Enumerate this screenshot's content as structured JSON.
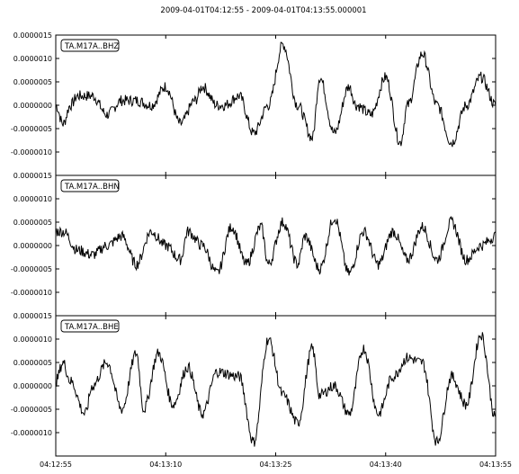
{
  "chart_data": {
    "type": "line",
    "title": "2009-04-01T04:12:55  -  2009-04-01T04:13:55.000001",
    "line_color": "#000000",
    "grid": false,
    "x_ticks": [
      "04:12:55",
      "04:13:10",
      "04:13:25",
      "04:13:40",
      "04:13:55"
    ],
    "xlim": [
      "04:12:55",
      "04:13:55"
    ],
    "y_tick_values": [
      1.5e-06,
      1e-06,
      5e-07,
      0.0,
      -5e-07,
      -1e-06
    ],
    "y_ticks": [
      "0.0000015",
      "0.0000010",
      "0.0000005",
      "0.0000000",
      "-0.0000005",
      "-0.0000010"
    ],
    "ylim": [
      -1.5e-06,
      1.5e-06
    ],
    "series": [
      {
        "name": "TA.M17A..BHZ",
        "x": [
          "04:12:55",
          "04:12:56",
          "04:12:57",
          "04:12:58",
          "04:13:00",
          "04:13:02",
          "04:13:04",
          "04:13:06",
          "04:13:08",
          "04:13:10",
          "04:13:12",
          "04:13:14",
          "04:13:15",
          "04:13:17",
          "04:13:18",
          "04:13:20",
          "04:13:22",
          "04:13:24",
          "04:13:26",
          "04:13:28",
          "04:13:30",
          "04:13:31",
          "04:13:33",
          "04:13:35",
          "04:13:36",
          "04:13:38",
          "04:13:40",
          "04:13:42",
          "04:13:43",
          "04:13:45",
          "04:13:47",
          "04:13:49",
          "04:13:51",
          "04:13:53",
          "04:13:55"
        ],
        "y": [
          0.0,
          -4e-07,
          0.0,
          2e-07,
          2e-07,
          -2e-07,
          1e-07,
          1e-07,
          0.0,
          4e-07,
          -4e-07,
          1e-07,
          4e-07,
          0.0,
          0.0,
          2e-07,
          -6e-07,
          0.0,
          1.3e-06,
          0.0,
          -7e-07,
          6e-07,
          -6e-07,
          4e-07,
          0.0,
          -2e-07,
          6e-07,
          -8e-07,
          0.0,
          1.1e-06,
          0.0,
          -8e-07,
          0.0,
          6e-07,
          0.0
        ],
        "noise": 1.2e-07
      },
      {
        "name": "TA.M17A..BHN",
        "x": [
          "04:12:55",
          "04:12:56",
          "04:12:58",
          "04:13:00",
          "04:13:02",
          "04:13:04",
          "04:13:06",
          "04:13:08",
          "04:13:10",
          "04:13:12",
          "04:13:13",
          "04:13:15",
          "04:13:17",
          "04:13:19",
          "04:13:21",
          "04:13:23",
          "04:13:24",
          "04:13:26",
          "04:13:28",
          "04:13:29",
          "04:13:31",
          "04:13:33",
          "04:13:35",
          "04:13:37",
          "04:13:39",
          "04:13:41",
          "04:13:43",
          "04:13:45",
          "04:13:47",
          "04:13:49",
          "04:13:51",
          "04:13:53",
          "04:13:55"
        ],
        "y": [
          3e-07,
          3e-07,
          -1e-07,
          -2e-07,
          0.0,
          2e-07,
          -4e-07,
          3e-07,
          0.0,
          -3e-07,
          3e-07,
          0.0,
          -6e-07,
          4e-07,
          -4e-07,
          4e-07,
          -4e-07,
          5e-07,
          -4e-07,
          2e-07,
          -5e-07,
          6e-07,
          -6e-07,
          3e-07,
          -4e-07,
          3e-07,
          -3e-07,
          4e-07,
          -3e-07,
          5e-07,
          -3e-07,
          0.0,
          2e-07
        ],
        "noise": 1.2e-07
      },
      {
        "name": "TA.M17A..BHE",
        "x": [
          "04:12:55",
          "04:12:56",
          "04:12:57",
          "04:12:59",
          "04:13:00",
          "04:13:02",
          "04:13:04",
          "04:13:06",
          "04:13:07",
          "04:13:09",
          "04:13:11",
          "04:13:13",
          "04:13:15",
          "04:13:17",
          "04:13:20",
          "04:13:22",
          "04:13:24",
          "04:13:26",
          "04:13:28",
          "04:13:30",
          "04:13:31",
          "04:13:33",
          "04:13:35",
          "04:13:37",
          "04:13:39",
          "04:13:41",
          "04:13:43",
          "04:13:45",
          "04:13:47",
          "04:13:49",
          "04:13:51",
          "04:13:53",
          "04:13:55"
        ],
        "y": [
          1e-07,
          5e-07,
          1e-07,
          -6e-07,
          0.0,
          5e-07,
          -5e-07,
          7e-07,
          -5e-07,
          7e-07,
          -4e-07,
          4e-07,
          -6e-07,
          3e-07,
          2e-07,
          -1.2e-06,
          1e-06,
          -2e-07,
          -8e-07,
          8e-07,
          -2e-07,
          0.0,
          -6e-07,
          8e-07,
          -6e-07,
          2e-07,
          6e-07,
          5e-07,
          -1.2e-06,
          2e-07,
          -4e-07,
          1.1e-06,
          -7e-07
        ],
        "noise": 1.2e-07
      }
    ]
  }
}
